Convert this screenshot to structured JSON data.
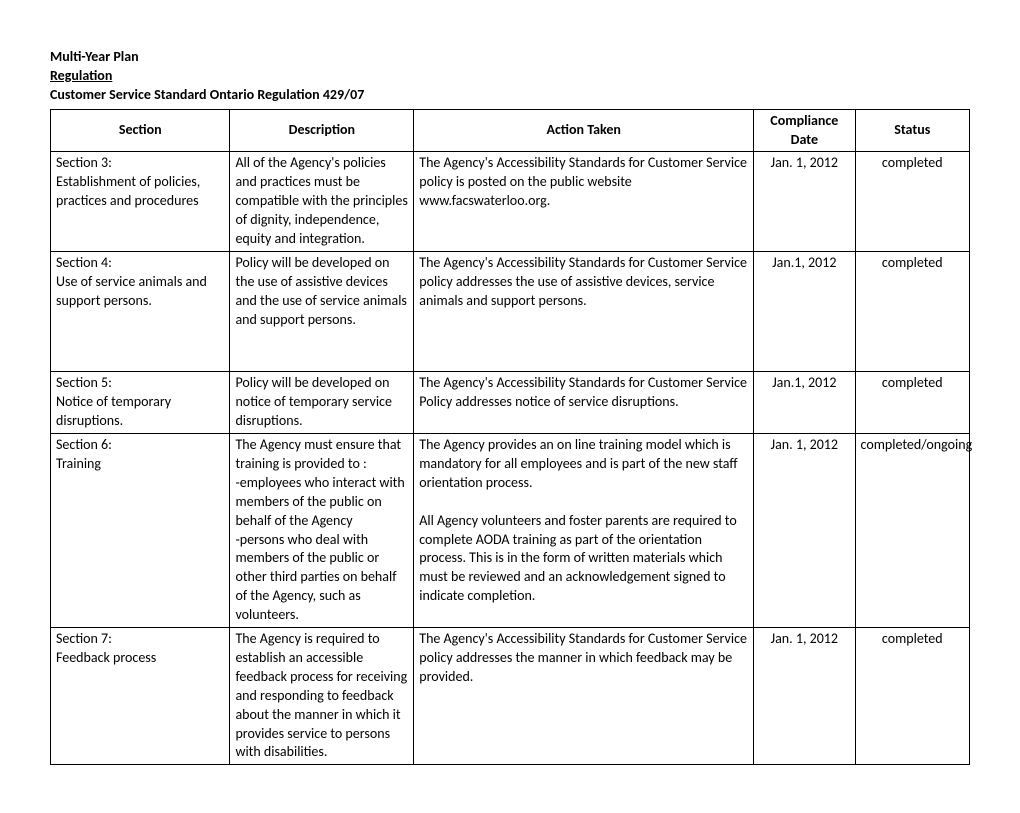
{
  "header": {
    "line1": "Multi-Year Plan",
    "line2": "Regulation",
    "line3": "Customer Service Standard Ontario Regulation 429/07"
  },
  "table": {
    "columns": [
      "Section",
      "Description",
      "Action Taken",
      "Compliance Date",
      "Status"
    ],
    "rows": [
      {
        "section_title": "Section 3:",
        "section_desc": "Establishment of policies, practices and procedures",
        "description": "All of the Agency's policies and practices must be compatible with the principles of dignity, independence, equity and integration.",
        "action": "The Agency's Accessibility Standards for Customer Service policy is posted on the public website www.facswaterloo.org.",
        "date": "Jan. 1, 2012",
        "status": "completed"
      },
      {
        "section_title": "Section 4:",
        "section_desc": "Use of service animals and support persons.",
        "description": "Policy will be developed on the use of assistive devices and the use of service animals and support persons.",
        "action": "The Agency's Accessibility Standards for Customer Service policy addresses the use of assistive devices, service animals and support persons.",
        "date": "Jan.1, 2012",
        "status": "completed",
        "extra_height": true
      },
      {
        "section_title": "Section 5:",
        "section_desc": "Notice of temporary disruptions.",
        "description": "Policy will be developed on notice of temporary service disruptions.",
        "action": "The Agency's Accessibility Standards for Customer Service Policy addresses notice of service disruptions.",
        "date": "Jan.1, 2012",
        "status": "completed"
      },
      {
        "section_title": "Section 6:",
        "section_desc": "Training",
        "description": "The Agency must ensure that training is provided to :\n-employees who interact with members of the public on behalf of the Agency\n-persons who deal with members of the public or other third parties on behalf of the Agency, such as volunteers.",
        "action": "The Agency provides an on line training model which is mandatory for all employees and is part of the new staff orientation process.\n\nAll Agency volunteers and foster parents are required to complete AODA training as part of the orientation process.  This is in the form of written materials which must be reviewed and an acknowledgement signed to indicate completion.",
        "date": "Jan. 1, 2012",
        "status": "completed/ongoing"
      },
      {
        "section_title": "Section 7:",
        "section_desc": "Feedback process",
        "description": "The Agency is required to establish an accessible feedback process for receiving and responding to feedback about the manner in which it provides service to persons with disabilities.",
        "action": "The Agency's Accessibility Standards for Customer Service policy addresses the manner in which feedback may be provided.",
        "date": "Jan. 1, 2012",
        "status": "completed"
      }
    ]
  }
}
